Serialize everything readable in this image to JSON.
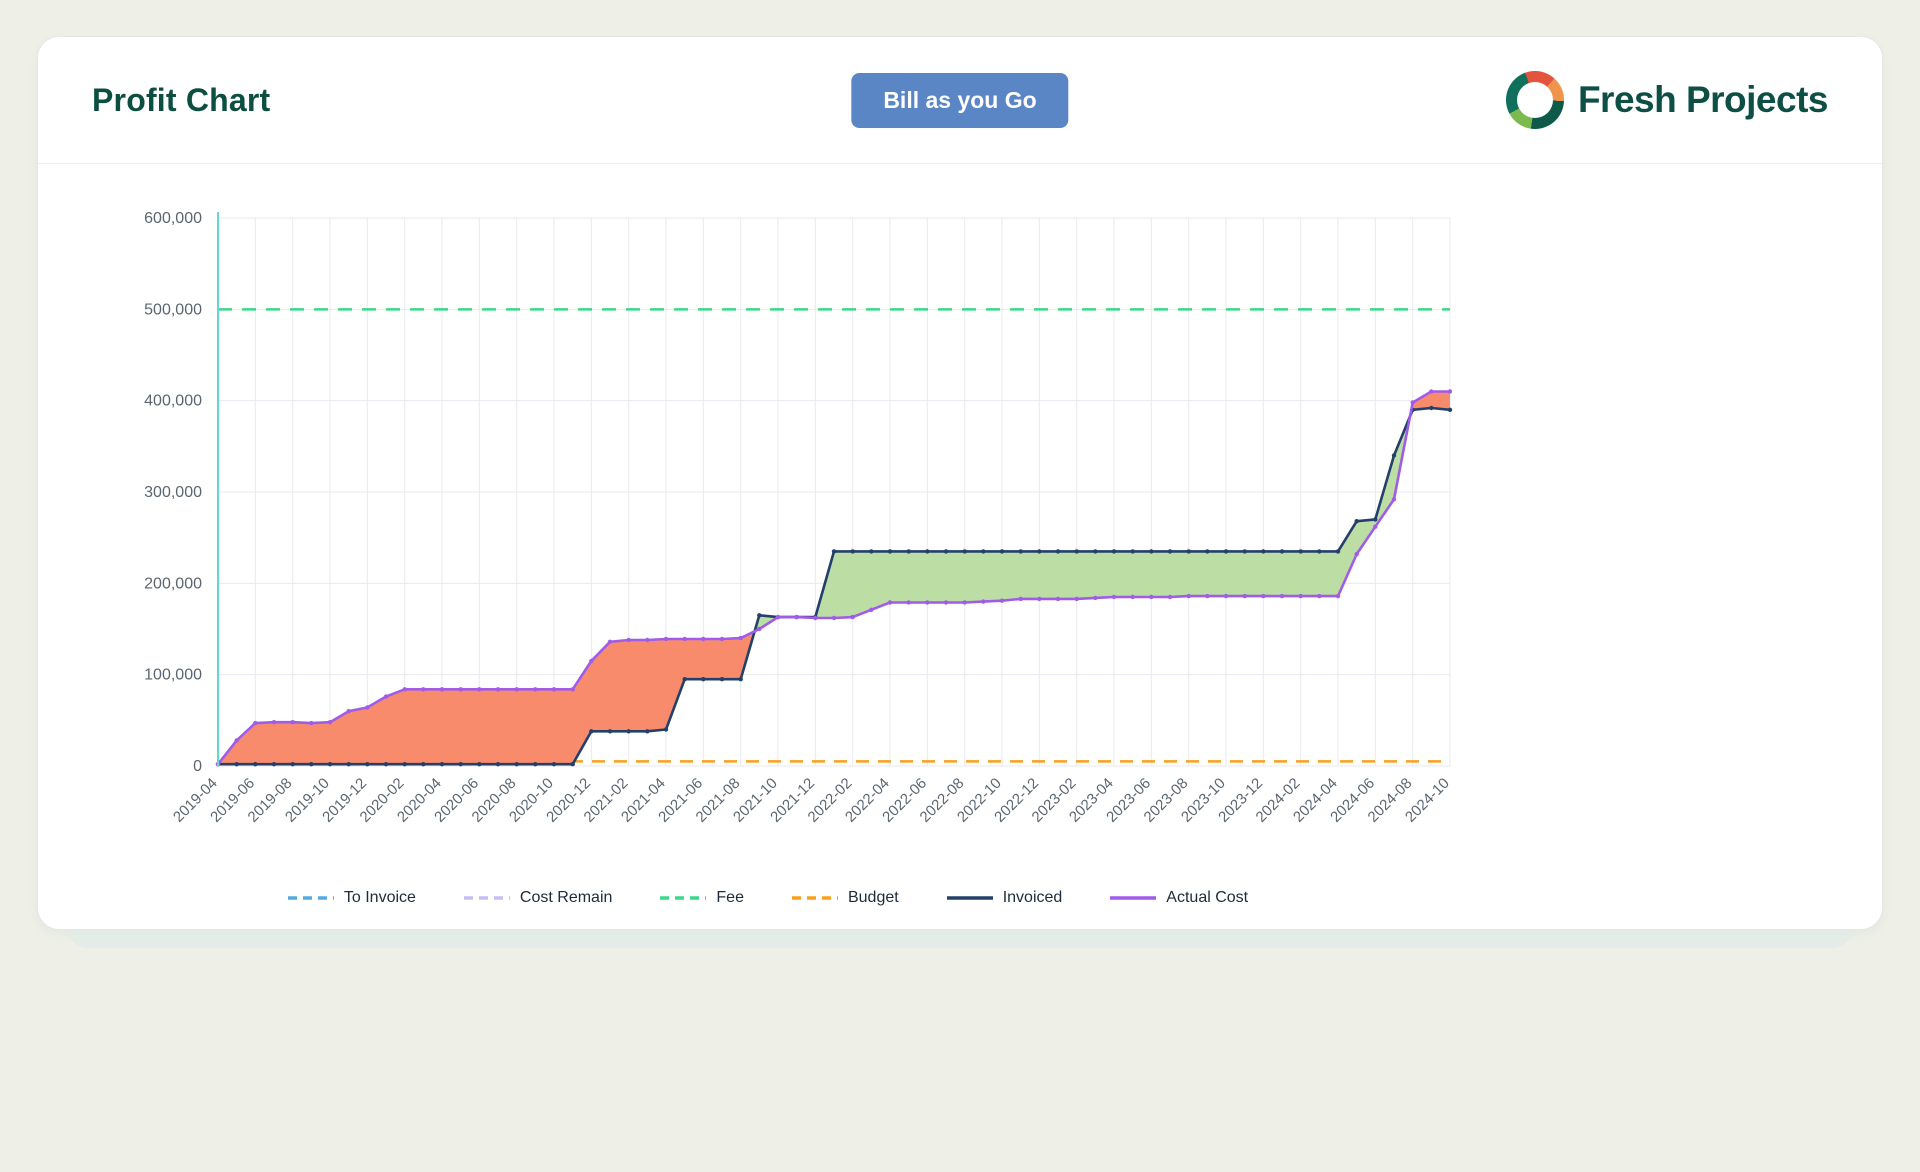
{
  "header": {
    "title": "Profit Chart",
    "button_label": "Bill as you Go",
    "brand": "Fresh Projects"
  },
  "chart_data": {
    "type": "line",
    "title": "Profit Chart",
    "ylim": [
      0,
      600000
    ],
    "yticks": [
      0,
      100000,
      200000,
      300000,
      400000,
      500000,
      600000
    ],
    "grid": true,
    "legend_position": "bottom",
    "colors": {
      "grid": "#e8e8f0",
      "axis": "#63d8cc",
      "tick_text": "#5b6570",
      "loss_fill": "#f98b6d",
      "profit_fill": "#bcdda4"
    },
    "x": [
      "2019-04",
      "2019-05",
      "2019-06",
      "2019-07",
      "2019-08",
      "2019-09",
      "2019-10",
      "2019-11",
      "2019-12",
      "2020-01",
      "2020-02",
      "2020-03",
      "2020-04",
      "2020-05",
      "2020-06",
      "2020-07",
      "2020-08",
      "2020-09",
      "2020-10",
      "2020-11",
      "2020-12",
      "2021-01",
      "2021-02",
      "2021-03",
      "2021-04",
      "2021-05",
      "2021-06",
      "2021-07",
      "2021-08",
      "2021-09",
      "2021-10",
      "2021-11",
      "2021-12",
      "2022-01",
      "2022-02",
      "2022-03",
      "2022-04",
      "2022-05",
      "2022-06",
      "2022-07",
      "2022-08",
      "2022-09",
      "2022-10",
      "2022-11",
      "2022-12",
      "2023-01",
      "2023-02",
      "2023-03",
      "2023-04",
      "2023-05",
      "2023-06",
      "2023-07",
      "2023-08",
      "2023-09",
      "2023-10",
      "2023-11",
      "2023-12",
      "2024-01",
      "2024-02",
      "2024-03",
      "2024-04",
      "2024-05",
      "2024-06",
      "2024-07",
      "2024-08",
      "2024-09",
      "2024-10"
    ],
    "x_tick_every": 2,
    "series": [
      {
        "name": "Fee",
        "color": "#3bd889",
        "style": "dashed",
        "constant": 500000
      },
      {
        "name": "Budget",
        "color": "#f9a11b",
        "style": "dashed",
        "constant": 5000
      },
      {
        "name": "Invoiced",
        "color": "#23406b",
        "style": "solid",
        "values": [
          2000,
          2000,
          2000,
          2000,
          2000,
          2000,
          2000,
          2000,
          2000,
          2000,
          2000,
          2000,
          2000,
          2000,
          2000,
          2000,
          2000,
          2000,
          2000,
          2000,
          38000,
          38000,
          38000,
          38000,
          40000,
          95000,
          95000,
          95000,
          95000,
          165000,
          163000,
          163000,
          163000,
          235000,
          235000,
          235000,
          235000,
          235000,
          235000,
          235000,
          235000,
          235000,
          235000,
          235000,
          235000,
          235000,
          235000,
          235000,
          235000,
          235000,
          235000,
          235000,
          235000,
          235000,
          235000,
          235000,
          235000,
          235000,
          235000,
          235000,
          235000,
          268000,
          270000,
          340000,
          390000,
          392000,
          390000
        ]
      },
      {
        "name": "Actual Cost",
        "color": "#a05ce8",
        "style": "solid",
        "values": [
          2000,
          28000,
          47000,
          48000,
          48000,
          47000,
          48000,
          60000,
          64000,
          76000,
          84000,
          84000,
          84000,
          84000,
          84000,
          84000,
          84000,
          84000,
          84000,
          84000,
          115000,
          136000,
          138000,
          138000,
          139000,
          139000,
          139000,
          139000,
          140000,
          150000,
          163000,
          163000,
          162000,
          162000,
          163000,
          171000,
          179000,
          179000,
          179000,
          179000,
          179000,
          180000,
          181000,
          183000,
          183000,
          183000,
          183000,
          184000,
          185000,
          185000,
          185000,
          185000,
          186000,
          186000,
          186000,
          186000,
          186000,
          186000,
          186000,
          186000,
          186000,
          232000,
          262000,
          292000,
          398000,
          410000,
          410000
        ]
      }
    ],
    "legend": [
      {
        "label": "To Invoice",
        "color": "#55aae1",
        "style": "dashed"
      },
      {
        "label": "Cost Remain",
        "color": "#cabcf5",
        "style": "dashed"
      },
      {
        "label": "Fee",
        "color": "#3bd889",
        "style": "dashed"
      },
      {
        "label": "Budget",
        "color": "#f9a11b",
        "style": "dashed"
      },
      {
        "label": "Invoiced",
        "color": "#23406b",
        "style": "solid"
      },
      {
        "label": "Actual Cost",
        "color": "#a05ce8",
        "style": "solid"
      }
    ]
  }
}
